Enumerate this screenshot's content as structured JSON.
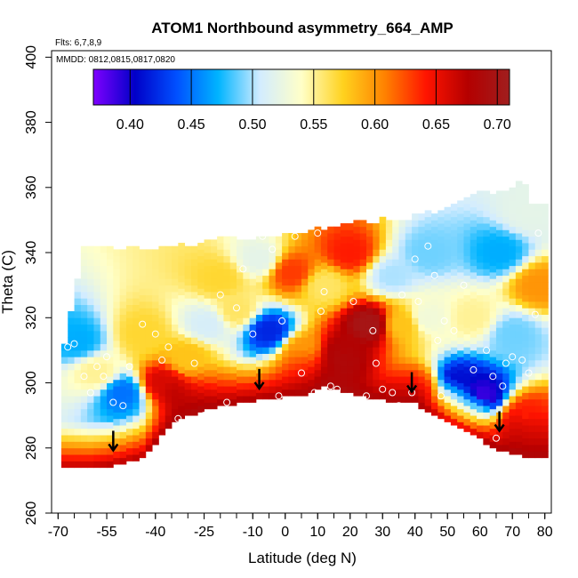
{
  "chart_data": {
    "type": "heatmap",
    "title": "ATOM1 Northbound asymmetry_664_AMP",
    "annotations": [
      "Flts: 6,7,8,9",
      "MMDD: 0812,0815,0817,0820"
    ],
    "xlabel": "Latitude (deg N)",
    "ylabel": "Theta (C)",
    "xlim": [
      -72,
      82
    ],
    "ylim": [
      260,
      402
    ],
    "x_ticks": [
      -70,
      -55,
      -40,
      -25,
      -10,
      0,
      10,
      20,
      30,
      40,
      50,
      60,
      70,
      80
    ],
    "x_tick_labels": [
      "-70",
      "-55",
      "-40",
      "-25",
      "-10",
      "0",
      "10",
      "20",
      "30",
      "40",
      "50",
      "60",
      "70",
      "80"
    ],
    "y_ticks": [
      260,
      280,
      300,
      320,
      340,
      360,
      380,
      400
    ],
    "y_tick_labels": [
      "260",
      "280",
      "300",
      "320",
      "340",
      "360",
      "380",
      "400"
    ],
    "colorbar": {
      "min": 0.37,
      "max": 0.71,
      "ticks": [
        0.4,
        0.45,
        0.5,
        0.55,
        0.6,
        0.65,
        0.7
      ],
      "tick_labels": [
        "0.40",
        "0.45",
        "0.50",
        "0.55",
        "0.60",
        "0.65",
        "0.70"
      ],
      "colors": [
        "#7f00ff",
        "#0000c8",
        "#0050ff",
        "#00b4ff",
        "#d2ecff",
        "#ffffc8",
        "#ffd21e",
        "#ff8200",
        "#ff1400",
        "#b40000",
        "#a01e1e"
      ]
    },
    "domain_bottom": [
      [
        -69,
        274
      ],
      [
        -60,
        274
      ],
      [
        -52,
        275
      ],
      [
        -44,
        277
      ],
      [
        -35,
        288
      ],
      [
        -25,
        292
      ],
      [
        -15,
        294
      ],
      [
        -8,
        295
      ],
      [
        0,
        296
      ],
      [
        8,
        297
      ],
      [
        12,
        299
      ],
      [
        20,
        297
      ],
      [
        30,
        295
      ],
      [
        40,
        294
      ],
      [
        50,
        288
      ],
      [
        60,
        283
      ],
      [
        65,
        280
      ],
      [
        72,
        278
      ],
      [
        75,
        277
      ],
      [
        80,
        277
      ]
    ],
    "domain_top": [
      [
        -69,
        308
      ],
      [
        -66,
        322
      ],
      [
        -63,
        336
      ],
      [
        -62,
        341
      ],
      [
        -50,
        341
      ],
      [
        -35,
        342
      ],
      [
        -20,
        344
      ],
      [
        -10,
        344
      ],
      [
        0,
        345
      ],
      [
        10,
        347
      ],
      [
        20,
        349
      ],
      [
        30,
        350
      ],
      [
        40,
        351
      ],
      [
        50,
        354
      ],
      [
        60,
        358
      ],
      [
        68,
        359
      ],
      [
        71,
        361
      ],
      [
        77,
        361
      ],
      [
        77,
        355
      ],
      [
        78,
        345
      ],
      [
        80,
        330
      ],
      [
        80,
        277
      ]
    ],
    "cells": [
      {
        "lat": -64,
        "theta": 313,
        "value": 0.47
      },
      {
        "lat": -58,
        "theta": 303,
        "value": 0.55
      },
      {
        "lat": -50,
        "theta": 297,
        "value": 0.45
      },
      {
        "lat": -44,
        "theta": 315,
        "value": 0.57
      },
      {
        "lat": -38,
        "theta": 300,
        "value": 0.66
      },
      {
        "lat": -30,
        "theta": 308,
        "value": 0.58
      },
      {
        "lat": -24,
        "theta": 318,
        "value": 0.51
      },
      {
        "lat": -20,
        "theta": 332,
        "value": 0.57
      },
      {
        "lat": -15,
        "theta": 322,
        "value": 0.56
      },
      {
        "lat": -5,
        "theta": 316,
        "value": 0.42
      },
      {
        "lat": -8,
        "theta": 338,
        "value": 0.52
      },
      {
        "lat": 2,
        "theta": 334,
        "value": 0.63
      },
      {
        "lat": 5,
        "theta": 310,
        "value": 0.6
      },
      {
        "lat": 12,
        "theta": 330,
        "value": 0.56
      },
      {
        "lat": 18,
        "theta": 310,
        "value": 0.68
      },
      {
        "lat": 26,
        "theta": 318,
        "value": 0.7
      },
      {
        "lat": 20,
        "theta": 340,
        "value": 0.64
      },
      {
        "lat": 33,
        "theta": 333,
        "value": 0.5
      },
      {
        "lat": 36,
        "theta": 318,
        "value": 0.58
      },
      {
        "lat": 44,
        "theta": 340,
        "value": 0.49
      },
      {
        "lat": 44,
        "theta": 320,
        "value": 0.53
      },
      {
        "lat": 40,
        "theta": 300,
        "value": 0.6
      },
      {
        "lat": 53,
        "theta": 300,
        "value": 0.41
      },
      {
        "lat": 60,
        "theta": 296,
        "value": 0.39
      },
      {
        "lat": 58,
        "theta": 320,
        "value": 0.55
      },
      {
        "lat": 66,
        "theta": 340,
        "value": 0.47
      },
      {
        "lat": 70,
        "theta": 315,
        "value": 0.49
      },
      {
        "lat": 75,
        "theta": 352,
        "value": 0.52
      },
      {
        "lat": 78,
        "theta": 330,
        "value": 0.6
      },
      {
        "lat": 74,
        "theta": 290,
        "value": 0.64
      }
    ],
    "sample_points": [
      [
        -67,
        311
      ],
      [
        -65,
        312
      ],
      [
        -62,
        302
      ],
      [
        -60,
        297
      ],
      [
        -58,
        305
      ],
      [
        -56,
        302
      ],
      [
        -55,
        308
      ],
      [
        -53,
        294
      ],
      [
        -50,
        293
      ],
      [
        -48,
        305
      ],
      [
        -44,
        318
      ],
      [
        -40,
        315
      ],
      [
        -38,
        307
      ],
      [
        -36,
        311
      ],
      [
        -33,
        289
      ],
      [
        -28,
        306
      ],
      [
        -25,
        290
      ],
      [
        -20,
        327
      ],
      [
        -18,
        294
      ],
      [
        -15,
        323
      ],
      [
        -13,
        335
      ],
      [
        -10,
        315
      ],
      [
        -7,
        345
      ],
      [
        -4,
        341
      ],
      [
        -1,
        319
      ],
      [
        -2,
        296
      ],
      [
        3,
        345
      ],
      [
        5,
        303
      ],
      [
        9,
        297
      ],
      [
        10,
        346
      ],
      [
        11,
        322
      ],
      [
        12,
        328
      ],
      [
        14,
        299
      ],
      [
        16,
        298
      ],
      [
        21,
        325
      ],
      [
        25,
        296
      ],
      [
        27,
        316
      ],
      [
        28,
        306
      ],
      [
        30,
        298
      ],
      [
        33,
        297
      ],
      [
        35,
        293
      ],
      [
        36,
        327
      ],
      [
        39,
        297
      ],
      [
        40,
        338
      ],
      [
        41,
        325
      ],
      [
        44,
        342
      ],
      [
        46,
        333
      ],
      [
        47,
        313
      ],
      [
        48,
        296
      ],
      [
        49,
        319
      ],
      [
        52,
        316
      ],
      [
        55,
        330
      ],
      [
        58,
        304
      ],
      [
        62,
        310
      ],
      [
        64,
        302
      ],
      [
        65,
        283
      ],
      [
        67,
        299
      ],
      [
        68,
        306
      ],
      [
        70,
        308
      ],
      [
        73,
        307
      ],
      [
        75,
        303
      ],
      [
        77,
        321
      ],
      [
        78,
        346
      ]
    ],
    "arrows": [
      [
        -53,
        282
      ],
      [
        -8,
        301
      ],
      [
        39,
        300
      ],
      [
        66,
        288
      ]
    ]
  }
}
